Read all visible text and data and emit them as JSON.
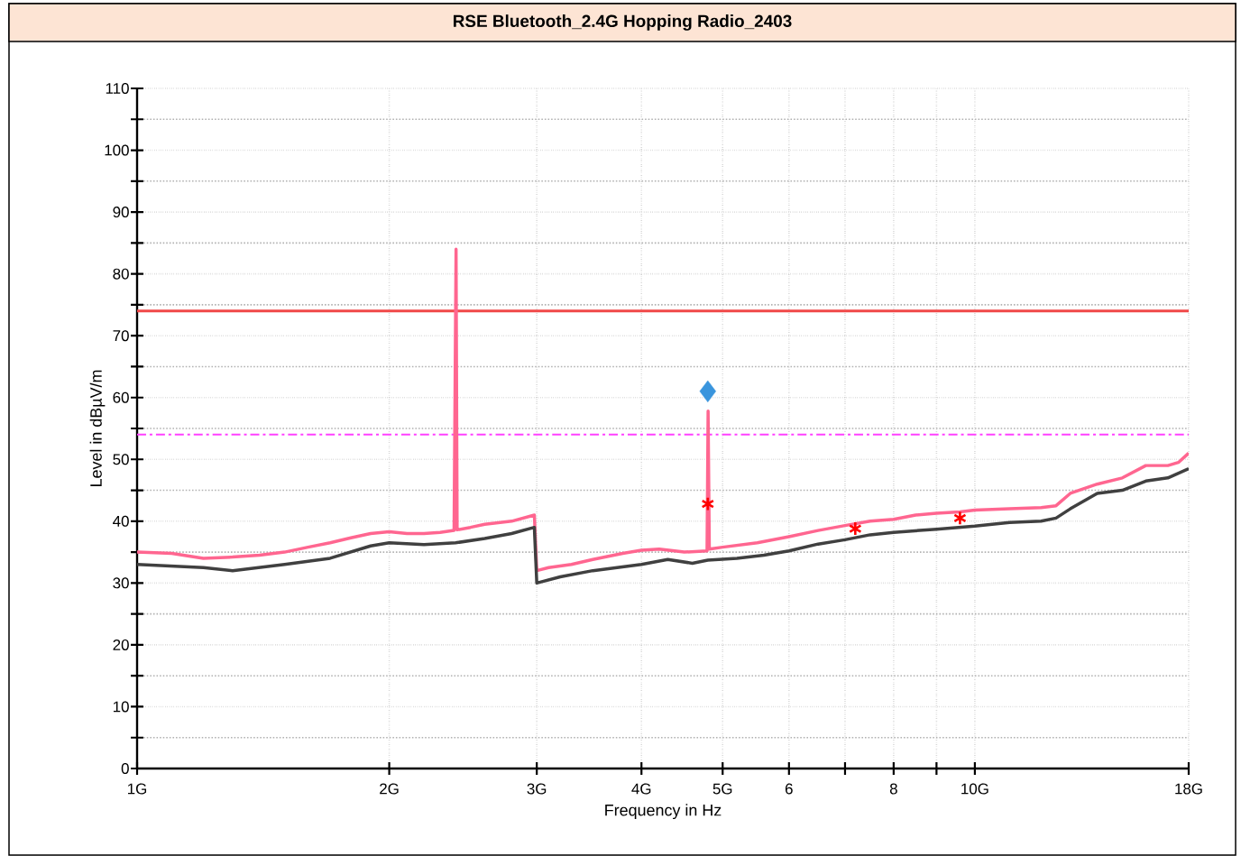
{
  "chart_data": {
    "type": "line",
    "title": "RSE  Bluetooth_2.4G  Hopping  Radio_2403",
    "xlabel": "Frequency in Hz",
    "ylabel": "Level in dBµV/m",
    "log": "x",
    "grid": true,
    "marker": "none",
    "line_style": "solid",
    "xlim": [
      1,
      18
    ],
    "ylim": [
      0,
      110
    ],
    "xticks": [
      {
        "value": 1,
        "label": "1G"
      },
      {
        "value": 2,
        "label": "2G"
      },
      {
        "value": 3,
        "label": "3G"
      },
      {
        "value": 4,
        "label": "4G"
      },
      {
        "value": 5,
        "label": "5G"
      },
      6,
      {
        "value": 7,
        "label": null
      },
      8,
      {
        "value": 9,
        "label": null
      },
      {
        "value": 10,
        "label": "10G"
      },
      {
        "value": 18,
        "label": "18G"
      }
    ],
    "yticks": [
      0,
      10,
      20,
      30,
      40,
      50,
      60,
      70,
      80,
      90,
      100,
      110
    ],
    "series": [
      {
        "color": "#ff6690",
        "x": [
          1.0,
          1.1,
          1.2,
          1.3,
          1.4,
          1.5,
          1.6,
          1.7,
          1.8,
          1.9,
          2.0,
          2.1,
          2.2,
          2.3,
          2.39,
          2.403,
          2.41,
          2.5,
          2.6,
          2.8,
          2.98,
          3.0,
          3.1,
          3.3,
          3.5,
          3.8,
          4.0,
          4.2,
          4.5,
          4.79,
          4.804,
          4.82,
          5.0,
          5.5,
          6.0,
          6.5,
          7.0,
          7.5,
          8.0,
          8.5,
          9.0,
          9.6,
          10,
          11,
          12,
          12.5,
          13,
          14,
          15,
          16,
          17,
          17.5,
          18
        ],
        "values": [
          35,
          34.8,
          34,
          34.2,
          34.5,
          35,
          35.8,
          36.5,
          37.3,
          38,
          38.3,
          38,
          38,
          38.2,
          38.5,
          84,
          38.6,
          39,
          39.5,
          40,
          41,
          32,
          32.5,
          33,
          33.8,
          34.8,
          35.3,
          35.5,
          35,
          35.2,
          57.8,
          35.5,
          35.8,
          36.5,
          37.5,
          38.5,
          39.3,
          40,
          40.3,
          41,
          41.3,
          41.5,
          41.8,
          42,
          42.2,
          42.5,
          44.5,
          46,
          47,
          49,
          49,
          49.5,
          51
        ]
      },
      {
        "color": "#404040",
        "x": [
          1.0,
          1.2,
          1.3,
          1.5,
          1.7,
          1.9,
          2.0,
          2.2,
          2.4,
          2.6,
          2.8,
          2.98,
          3.0,
          3.2,
          3.5,
          4.0,
          4.3,
          4.6,
          4.8,
          5.2,
          5.6,
          6.0,
          6.5,
          7.0,
          7.5,
          8.0,
          9.0,
          10,
          11,
          12,
          12.5,
          13,
          14,
          15,
          16,
          17,
          18
        ],
        "values": [
          33,
          32.5,
          32,
          33,
          34,
          36,
          36.5,
          36.2,
          36.5,
          37.2,
          38,
          39,
          30,
          31,
          32,
          33,
          33.8,
          33.2,
          33.7,
          34,
          34.5,
          35.2,
          36.3,
          37,
          37.8,
          38.2,
          38.7,
          39.2,
          39.8,
          40,
          40.5,
          42,
          44.5,
          45,
          46.5,
          47,
          48.5
        ]
      },
      {
        "type": "scatter",
        "marker": "diamond",
        "color": "#3a95dd",
        "x": [
          4.8
        ],
        "values": [
          61
        ]
      },
      {
        "type": "scatter",
        "marker": "cross",
        "color": "#ff0000",
        "x": [
          4.8,
          7.2,
          9.6
        ],
        "values": [
          42.8,
          38.8,
          40.5
        ]
      }
    ],
    "ref_lines": [
      {
        "axis": "y",
        "value": 74,
        "color": "#f04848",
        "line_style": "solid"
      },
      {
        "axis": "y",
        "value": 54,
        "color": "#ff40ff",
        "line_style": "dashdot"
      }
    ]
  }
}
